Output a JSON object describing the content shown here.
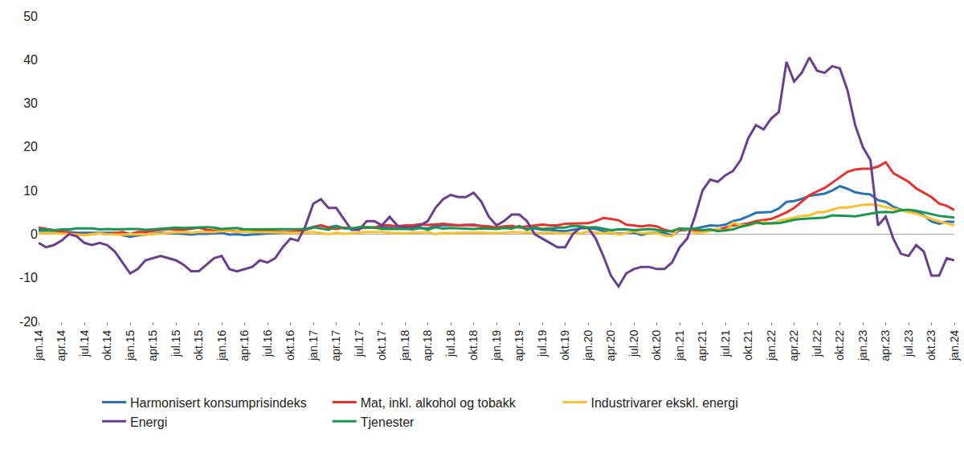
{
  "chart_data": {
    "type": "line",
    "categories": [
      "jan.14",
      null,
      null,
      "apr.14",
      null,
      null,
      "jul.14",
      null,
      null,
      "okt.14",
      null,
      null,
      "jan.15",
      null,
      null,
      "apr.15",
      null,
      null,
      "jul.15",
      null,
      null,
      "okt.15",
      null,
      null,
      "jan.16",
      null,
      null,
      "apr.16",
      null,
      null,
      "jul.16",
      null,
      null,
      "okt.16",
      null,
      null,
      "jan.17",
      null,
      null,
      "apr.17",
      null,
      null,
      "jul.17",
      null,
      null,
      "okt.17",
      null,
      null,
      "jan.18",
      null,
      null,
      "apr.18",
      null,
      null,
      "jul.18",
      null,
      null,
      "okt.18",
      null,
      null,
      "jan.19",
      null,
      null,
      "apr.19",
      null,
      null,
      "jul.19",
      null,
      null,
      "okt.19",
      null,
      null,
      "jan.20",
      null,
      null,
      "apr.20",
      null,
      null,
      "jul.20",
      null,
      null,
      "okt.20",
      null,
      null,
      "jan.21",
      null,
      null,
      "apr.21",
      null,
      null,
      "jul.21",
      null,
      null,
      "okt.21",
      null,
      null,
      "jan.22",
      null,
      null,
      "apr.22",
      null,
      null,
      "jul.22",
      null,
      null,
      "okt.22",
      null,
      null,
      "jan.23",
      null,
      null,
      "apr.23",
      null,
      null,
      "jul.23",
      null,
      null,
      "okt.23",
      null,
      null,
      "jan.24"
    ],
    "series": [
      {
        "name": "Harmonisert konsumprisindeks",
        "color": "#2a74b5",
        "values": [
          0.8,
          0.5,
          0.3,
          0.5,
          0.5,
          0.3,
          0.3,
          0.4,
          0.3,
          0.4,
          0.3,
          -0.2,
          -0.6,
          -0.3,
          -0.1,
          0,
          0.3,
          0.2,
          0.2,
          0.1,
          -0.1,
          0.1,
          0.1,
          0.2,
          0.3,
          -0.1,
          0,
          -0.2,
          -0.1,
          0.1,
          0.2,
          0.2,
          0.4,
          0.5,
          0.6,
          1.1,
          1.7,
          2,
          1.5,
          1.9,
          1.4,
          1.3,
          1.3,
          1.5,
          1.5,
          1.4,
          1.5,
          1.4,
          1.3,
          1.1,
          1.4,
          1.3,
          1.9,
          2,
          2.1,
          2,
          2.1,
          2.2,
          1.9,
          1.5,
          1.4,
          1.5,
          1.4,
          1.7,
          1.2,
          1.3,
          1,
          1,
          0.8,
          0.7,
          1,
          1.3,
          1.4,
          1.2,
          0.7,
          0.3,
          0.1,
          0.3,
          0.4,
          -0.2,
          0.3,
          0.3,
          0.2,
          -0.3,
          0.9,
          0.9,
          1.3,
          1.6,
          2,
          1.9,
          2.2,
          3,
          3.4,
          4.1,
          4.9,
          5,
          5.1,
          5.9,
          7.4,
          7.6,
          8.1,
          8.8,
          9,
          9.3,
          10,
          11,
          10.4,
          9.6,
          9.3,
          9.1,
          7.8,
          7.4,
          6.3,
          5.6,
          5.3,
          5.2,
          4.3,
          2.9,
          2.4,
          2.9,
          2.8
        ]
      },
      {
        "name": "Mat, inkl. alkohol og tobakk",
        "color": "#e7312e",
        "values": [
          1.5,
          1.2,
          0.8,
          0.5,
          0.3,
          0,
          -0.2,
          0,
          0.2,
          0,
          0.3,
          0.5,
          0,
          0.5,
          0.5,
          0.8,
          1,
          1.2,
          1,
          1,
          1.2,
          1.5,
          1,
          0.8,
          0.8,
          0.8,
          0.6,
          0.8,
          0.5,
          0.8,
          0.9,
          0.7,
          0.5,
          0.5,
          0.7,
          1,
          1.5,
          2,
          1.5,
          1.2,
          1.5,
          1.3,
          1.5,
          1.5,
          1.5,
          2,
          2,
          1.8,
          2,
          2,
          2.3,
          2.1,
          2.2,
          2.4,
          2.2,
          2,
          2.1,
          2,
          1.8,
          1.8,
          1.5,
          1.8,
          1.9,
          1.5,
          1.8,
          2,
          2.2,
          2,
          2,
          2.4,
          2.4,
          2.4,
          2.5,
          3,
          3.7,
          3.5,
          3.2,
          2.2,
          2,
          1.8,
          2,
          1.8,
          1,
          0.6,
          1,
          1.2,
          0.8,
          0.7,
          0.9,
          1,
          1.5,
          2,
          2.2,
          2.5,
          3,
          3.2,
          3.5,
          4.2,
          5,
          6,
          7.5,
          8.9,
          9.8,
          10.6,
          11.8,
          13.1,
          14.3,
          14.8,
          15,
          15,
          15.5,
          16.5,
          14,
          13,
          12,
          10.5,
          9.5,
          8.5,
          7,
          6.5,
          5.5
        ]
      },
      {
        "name": "Industrivarer ekskl. energi",
        "color": "#f9c12e",
        "values": [
          0.2,
          0.3,
          0.2,
          0.1,
          0,
          -0.1,
          -0.2,
          0,
          0.2,
          0,
          -0.1,
          -0.1,
          0,
          0,
          -0.1,
          0.1,
          0.1,
          0.3,
          0.4,
          0.5,
          0.3,
          0.5,
          0.5,
          0.5,
          0.7,
          0.7,
          0.5,
          0.6,
          0.5,
          0.5,
          0.5,
          0.4,
          0.4,
          0.3,
          0.3,
          0.3,
          0.5,
          0.2,
          0,
          0.3,
          0.1,
          0.2,
          0.4,
          0.5,
          0.5,
          0.5,
          0.3,
          0.3,
          0.2,
          0.4,
          0.3,
          0.5,
          0,
          0.3,
          0.2,
          0.3,
          0.3,
          0.4,
          0.4,
          0.2,
          0.2,
          0.3,
          0.5,
          0.4,
          0.4,
          0.2,
          0.2,
          0.4,
          0.2,
          0.2,
          0.2,
          0.2,
          0.6,
          0.4,
          0.2,
          0.4,
          -0.1,
          0.2,
          0.7,
          0.2,
          0.3,
          0.2,
          -0.3,
          -0.5,
          1.4,
          1,
          0.3,
          0.4,
          0.7,
          1.2,
          0.7,
          2.6,
          2.1,
          2,
          2.4,
          2.9,
          2.3,
          3.1,
          3.4,
          3.8,
          4.2,
          4.3,
          5,
          5.1,
          5.6,
          6.1,
          6.1,
          6.4,
          6.7,
          6.8,
          6.6,
          6.2,
          5.8,
          5.5,
          5,
          4.7,
          4.1,
          3.5,
          2.9,
          2.5,
          2
        ]
      },
      {
        "name": "Energi",
        "color": "#6b3f90",
        "values": [
          -2,
          -3,
          -2.5,
          -1.5,
          0,
          -0.5,
          -2,
          -2.5,
          -2,
          -2.5,
          -4,
          -6.5,
          -9,
          -8,
          -6,
          -5.5,
          -5,
          -5.5,
          -6,
          -7,
          -8.5,
          -8.5,
          -7,
          -5.5,
          -5,
          -8,
          -8.5,
          -8,
          -7.5,
          -6,
          -6.5,
          -5.5,
          -3,
          -1,
          -1.5,
          2,
          7,
          8,
          6,
          6,
          3.5,
          1,
          1,
          3,
          3,
          2,
          4,
          2,
          1.5,
          1.5,
          2,
          3,
          6,
          8,
          9,
          8.5,
          8.5,
          9.5,
          7.5,
          4,
          2,
          3,
          4.5,
          4.5,
          3,
          0,
          -1,
          -2,
          -3,
          -3,
          0,
          1.5,
          1.5,
          -1,
          -5,
          -9.5,
          -12,
          -9,
          -8,
          -7.5,
          -7.5,
          -8,
          -8,
          -6.5,
          -3,
          -1,
          4,
          10,
          12.5,
          12,
          13.5,
          14.5,
          17,
          22,
          25,
          24,
          26.5,
          28,
          39.5,
          35,
          37,
          40.5,
          37.5,
          37,
          38.5,
          38,
          33,
          25,
          20,
          17,
          2,
          4,
          -1,
          -4.5,
          -5,
          -2.5,
          -4,
          -9.5,
          -9.5,
          -5.5,
          -6
        ]
      },
      {
        "name": "Tjenester",
        "color": "#1a9650",
        "values": [
          1.2,
          1,
          0.9,
          1.1,
          1.1,
          1.3,
          1.3,
          1.3,
          1.1,
          1.2,
          1.1,
          1.2,
          1.2,
          1.2,
          1,
          1.1,
          1.2,
          1.3,
          1.5,
          1.4,
          1.5,
          1.6,
          1.6,
          1.5,
          1.2,
          1.3,
          1.4,
          1.1,
          1.1,
          1.2,
          1.2,
          1.1,
          1.2,
          1.1,
          1.1,
          1.2,
          1.6,
          1.3,
          1,
          1.8,
          1.3,
          1.3,
          1.6,
          1.6,
          1.5,
          1.2,
          1.2,
          1.3,
          1.2,
          1.2,
          1.5,
          1,
          1.6,
          1.3,
          1.4,
          1.3,
          1.3,
          1.2,
          1.3,
          1.3,
          1.2,
          1.4,
          1.3,
          1.9,
          1,
          1.6,
          1.2,
          1.3,
          1.5,
          1.5,
          1.9,
          1.8,
          1.5,
          1.6,
          1.3,
          0.9,
          1.1,
          1.1,
          0.9,
          1.1,
          1.2,
          1,
          0.6,
          0.7,
          1.3,
          1.2,
          1.3,
          0.9,
          1.1,
          0.7,
          0.9,
          1.1,
          1.7,
          2.1,
          2.7,
          2.4,
          2.5,
          2.5,
          2.9,
          3.3,
          3.5,
          3.6,
          3.7,
          3.8,
          4.3,
          4.3,
          4.2,
          4.1,
          4.4,
          4.8,
          5,
          5.1,
          5,
          5.5,
          5.6,
          5.4,
          5,
          4.6,
          4.2,
          4,
          3.8
        ]
      }
    ],
    "ylim": [
      -20,
      50
    ],
    "yticks": [
      -20,
      -10,
      0,
      10,
      20,
      30,
      40,
      50
    ],
    "grid": false,
    "legend": "bottom"
  }
}
